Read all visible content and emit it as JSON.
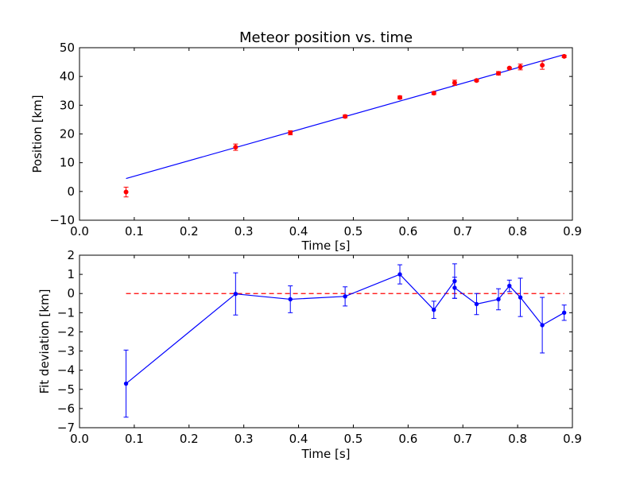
{
  "chart_data": [
    {
      "type": "scatter",
      "title": "Meteor position vs. time",
      "xlabel": "Time [s]",
      "ylabel": "Position [km]",
      "xlim": [
        0.0,
        0.9
      ],
      "ylim": [
        -10,
        50
      ],
      "xticks": [
        "0.0",
        "0.1",
        "0.2",
        "0.3",
        "0.4",
        "0.5",
        "0.6",
        "0.7",
        "0.8",
        "0.9"
      ],
      "yticks": [
        "−10",
        "0",
        "10",
        "20",
        "30",
        "40",
        "50"
      ],
      "xtick_values": [
        0.0,
        0.1,
        0.2,
        0.3,
        0.4,
        0.5,
        0.6,
        0.7,
        0.8,
        0.9
      ],
      "ytick_values": [
        -10,
        0,
        10,
        20,
        30,
        40,
        50
      ],
      "grid": false,
      "colors": {
        "points": "#ff0000",
        "fit": "#0000ff"
      },
      "points": {
        "x": [
          0.085,
          0.285,
          0.385,
          0.485,
          0.585,
          0.647,
          0.685,
          0.725,
          0.765,
          0.785,
          0.805,
          0.845,
          0.885
        ],
        "y": [
          -0.2,
          15.4,
          20.4,
          26.1,
          32.7,
          34.2,
          37.8,
          38.6,
          41.1,
          42.9,
          43.3,
          43.9,
          47.0
        ],
        "err": [
          1.7,
          1.1,
          0.7,
          0.5,
          0.5,
          0.5,
          0.9,
          0.4,
          0.6,
          0.3,
          1.0,
          1.4,
          0.4
        ]
      },
      "fit": {
        "x": [
          0.085,
          0.885
        ],
        "y": [
          4.5,
          47.6
        ]
      }
    },
    {
      "type": "line",
      "xlabel": "Time [s]",
      "ylabel": "Fit deviation [km]",
      "xlim": [
        0.0,
        0.9
      ],
      "ylim": [
        -7,
        2
      ],
      "xticks": [
        "0.0",
        "0.1",
        "0.2",
        "0.3",
        "0.4",
        "0.5",
        "0.6",
        "0.7",
        "0.8",
        "0.9"
      ],
      "yticks": [
        "−7",
        "−6",
        "−5",
        "−4",
        "−3",
        "−2",
        "−1",
        "0",
        "1",
        "2"
      ],
      "xtick_values": [
        0.0,
        0.1,
        0.2,
        0.3,
        0.4,
        0.5,
        0.6,
        0.7,
        0.8,
        0.9
      ],
      "ytick_values": [
        -7,
        -6,
        -5,
        -4,
        -3,
        -2,
        -1,
        0,
        1,
        2
      ],
      "grid": false,
      "colors": {
        "series": "#0000ff",
        "reference": "#ff0000"
      },
      "series": {
        "x": [
          0.085,
          0.285,
          0.385,
          0.485,
          0.585,
          0.647,
          0.685,
          0.685,
          0.725,
          0.765,
          0.785,
          0.805,
          0.845,
          0.885
        ],
        "y": [
          -4.7,
          -0.02,
          -0.3,
          -0.15,
          1.0,
          -0.85,
          0.65,
          0.3,
          -0.55,
          -0.3,
          0.4,
          -0.2,
          -1.65,
          -1.0
        ],
        "err": [
          1.75,
          1.1,
          0.7,
          0.5,
          0.5,
          0.45,
          0.9,
          0.55,
          0.55,
          0.55,
          0.3,
          1.0,
          1.45,
          0.4
        ]
      },
      "reference": {
        "x": [
          0.085,
          0.885
        ],
        "y": [
          0,
          0
        ]
      }
    }
  ]
}
